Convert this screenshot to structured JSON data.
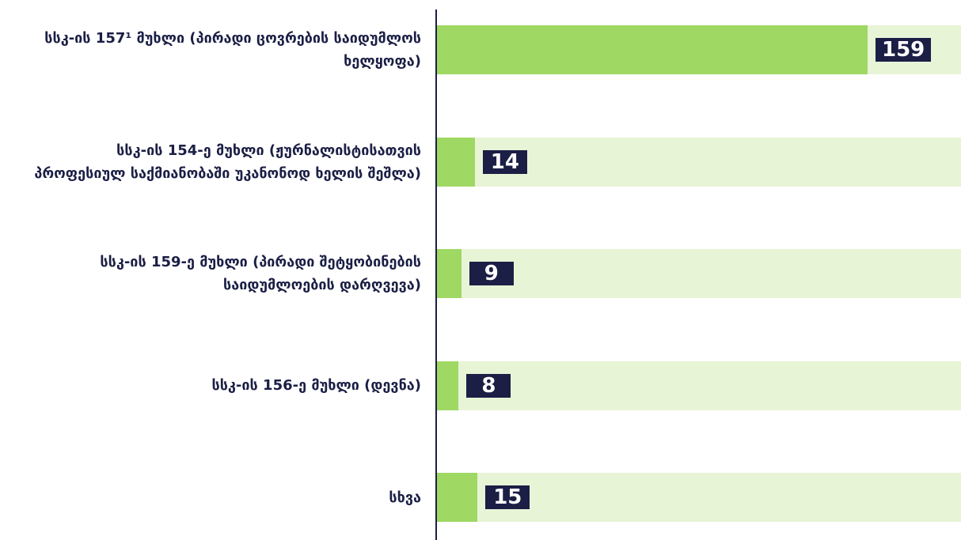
{
  "chart_data": {
    "type": "bar",
    "orientation": "horizontal",
    "categories": [
      "სსკ-ის 157¹ მუხლი (პირადი ცოვრების საიდუმლოს ხელყოფა)",
      "სსკ-ის 154-ე მუხლი (ჟურნალისტისათვის პროფესიულ საქმიანობაში უკანონოდ ხელის შეშლა)",
      "სსკ-ის 159-ე მუხლი (პირადი შეტყობინების საიდუმლოების დარღვევა)",
      "სსკ-ის 156-ე მუხლი (დევნა)",
      "სხვა"
    ],
    "values": [
      159,
      14,
      9,
      8,
      15
    ],
    "color": "#9fd863",
    "xlim": [
      0,
      159
    ]
  }
}
